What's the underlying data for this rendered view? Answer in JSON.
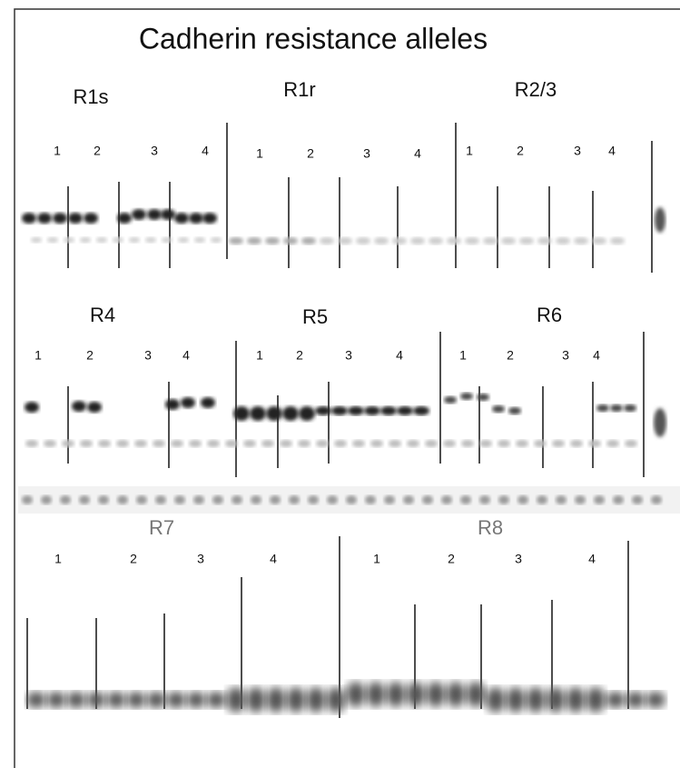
{
  "title": "Cadherin resistance alleles",
  "panels": [
    {
      "label": "R1s",
      "lanes": [
        "1",
        "2",
        "3",
        "4"
      ]
    },
    {
      "label": "R1r",
      "lanes": [
        "1",
        "2",
        "3",
        "4"
      ]
    },
    {
      "label": "R2/3",
      "lanes": [
        "1",
        "2",
        "3",
        "4"
      ]
    },
    {
      "label": "R4",
      "lanes": [
        "1",
        "2",
        "3",
        "4"
      ]
    },
    {
      "label": "R5",
      "lanes": [
        "1",
        "2",
        "3",
        "4"
      ]
    },
    {
      "label": "R6",
      "lanes": [
        "1",
        "2",
        "3",
        "4"
      ]
    },
    {
      "label": "R7",
      "lanes": [
        "1",
        "2",
        "3",
        "4"
      ]
    },
    {
      "label": "R8",
      "lanes": [
        "1",
        "2",
        "3",
        "4"
      ]
    }
  ]
}
